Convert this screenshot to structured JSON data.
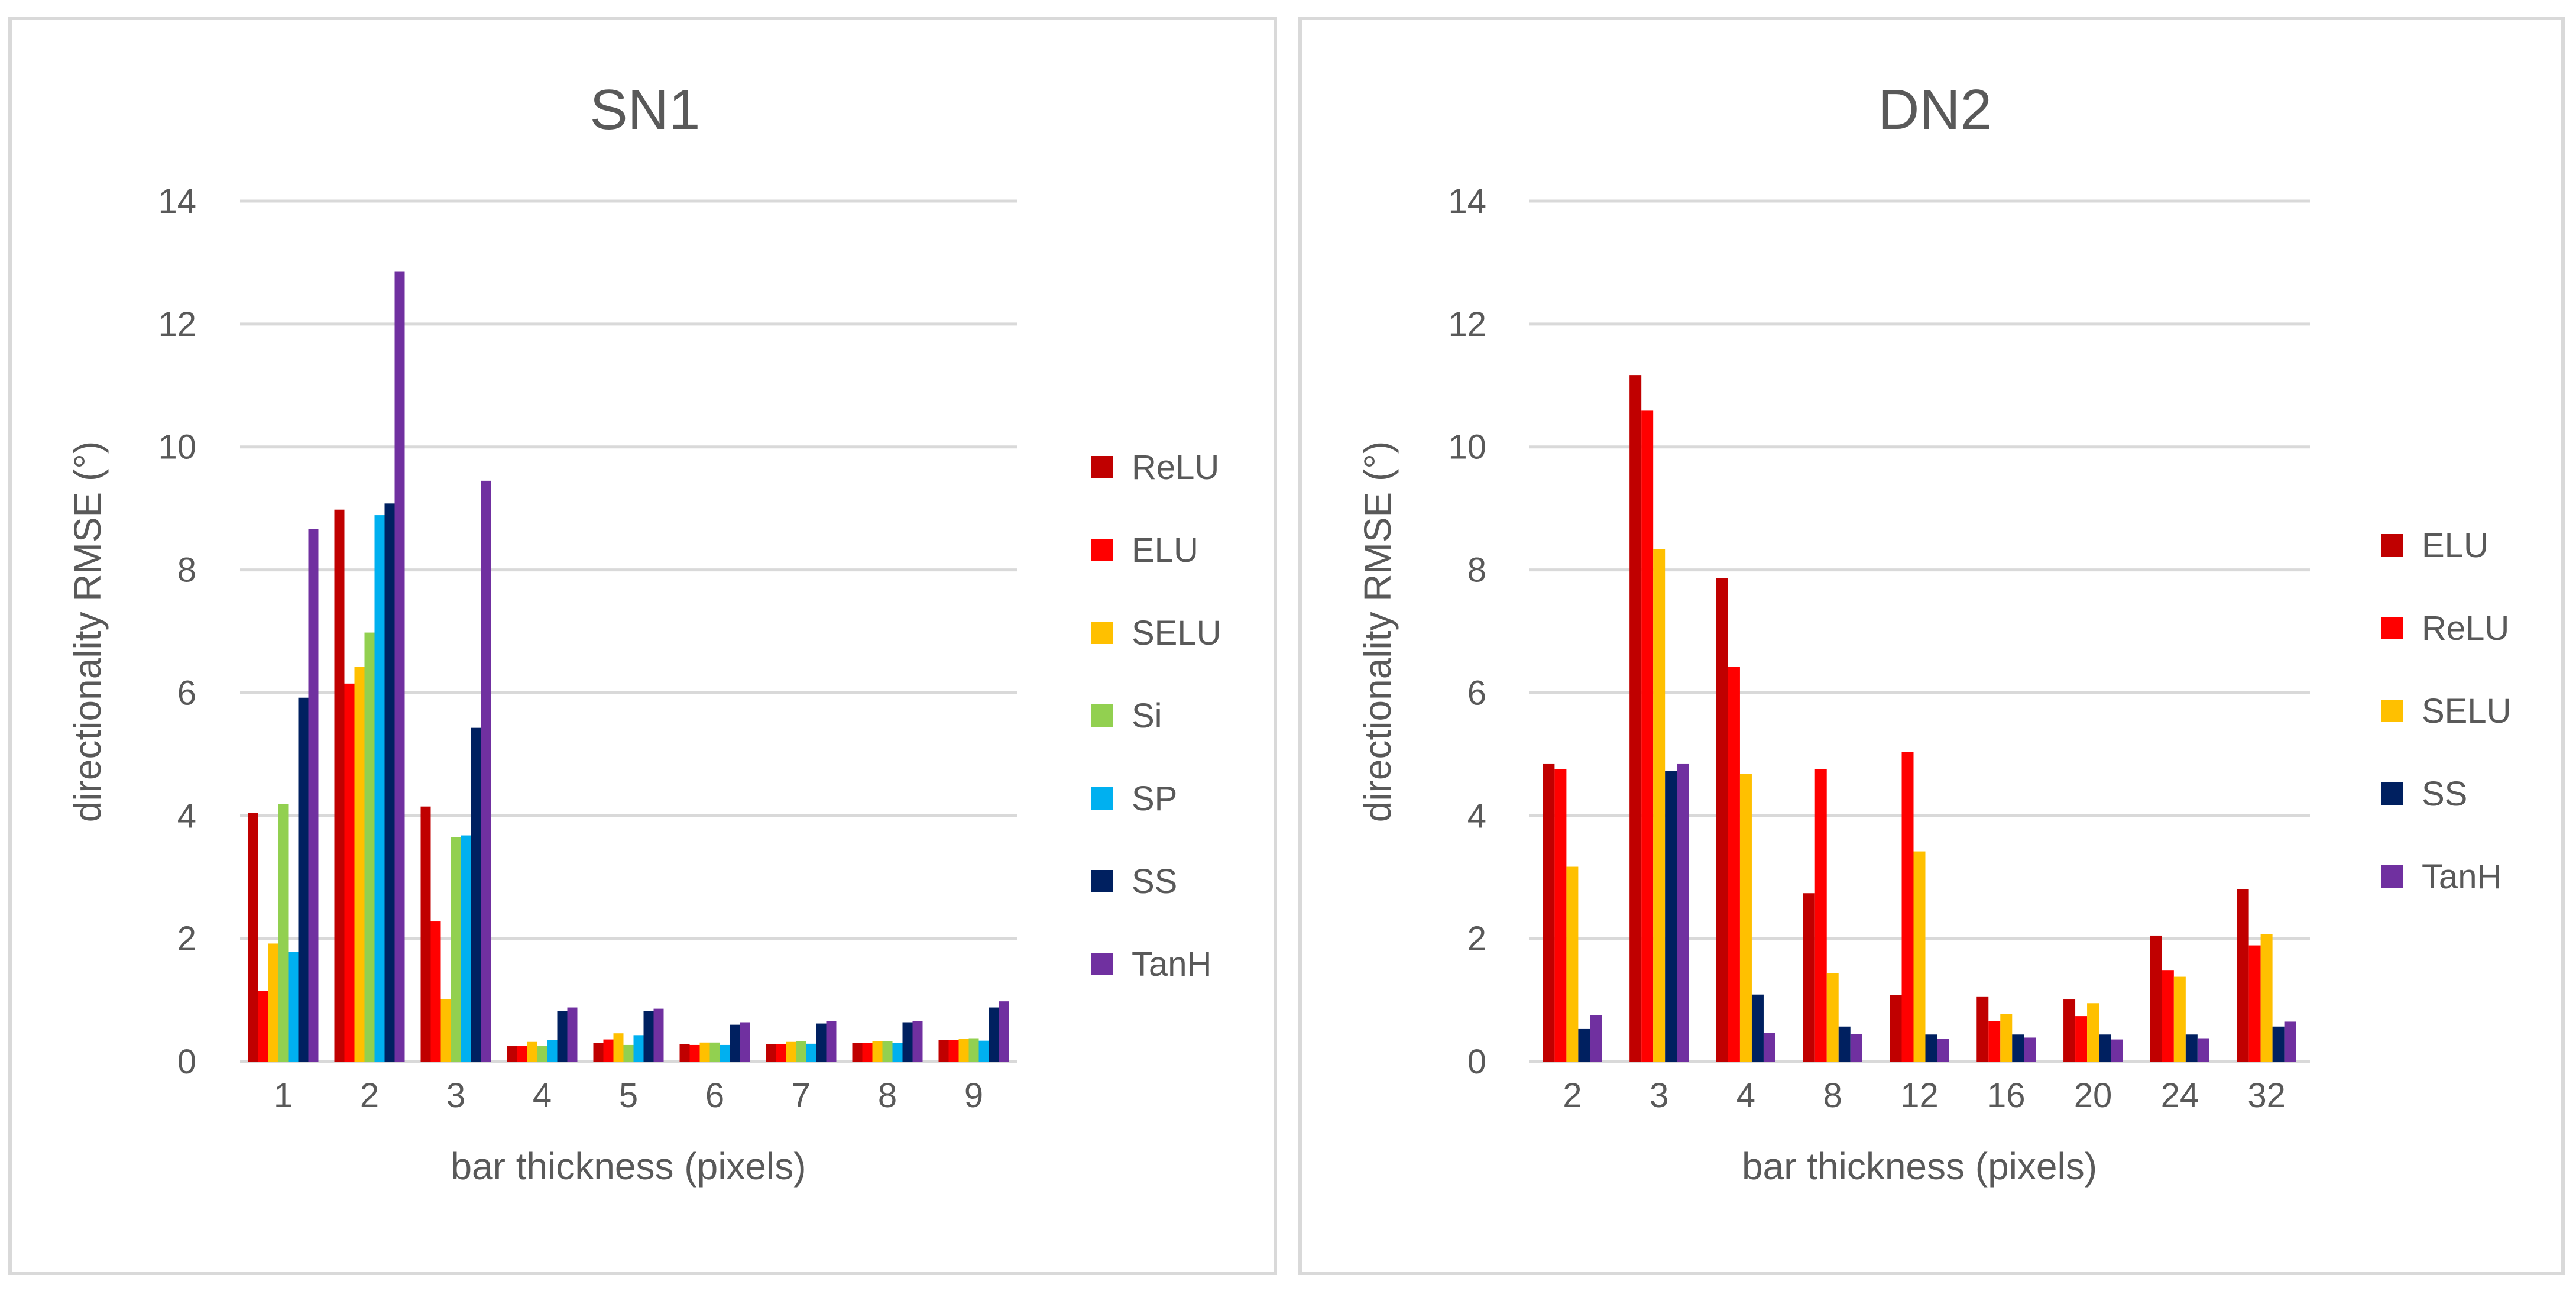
{
  "chart_data": [
    {
      "type": "bar",
      "title": "SN1",
      "xlabel": "bar thickness (pixels)",
      "ylabel": "directionality RMSE (°)",
      "ylim": [
        0,
        14
      ],
      "yticks": [
        "0",
        "2",
        "4",
        "6",
        "8",
        "10",
        "12",
        "14"
      ],
      "grid": true,
      "legend_position": "right",
      "categories": [
        "1",
        "2",
        "3",
        "4",
        "5",
        "6",
        "7",
        "8",
        "9"
      ],
      "series": [
        {
          "name": "ReLU",
          "color": "#c00000",
          "values": [
            4.05,
            8.98,
            4.15,
            0.25,
            0.3,
            0.28,
            0.28,
            0.3,
            0.35
          ]
        },
        {
          "name": "ELU",
          "color": "#ff0000",
          "values": [
            1.15,
            6.15,
            2.28,
            0.25,
            0.36,
            0.27,
            0.28,
            0.3,
            0.35
          ]
        },
        {
          "name": "SELU",
          "color": "#ffc000",
          "values": [
            1.92,
            6.42,
            1.02,
            0.32,
            0.46,
            0.31,
            0.32,
            0.33,
            0.37
          ]
        },
        {
          "name": "Si",
          "color": "#92d050",
          "values": [
            4.19,
            6.98,
            3.65,
            0.25,
            0.27,
            0.31,
            0.33,
            0.33,
            0.38
          ]
        },
        {
          "name": "SP",
          "color": "#00b0f0",
          "values": [
            1.78,
            8.89,
            3.68,
            0.35,
            0.43,
            0.27,
            0.29,
            0.3,
            0.34
          ]
        },
        {
          "name": "SS",
          "color": "#002060",
          "values": [
            5.92,
            9.08,
            5.43,
            0.82,
            0.82,
            0.6,
            0.62,
            0.64,
            0.88
          ]
        },
        {
          "name": "TanH",
          "color": "#7030a0",
          "values": [
            8.66,
            12.85,
            9.45,
            0.88,
            0.86,
            0.64,
            0.66,
            0.66,
            0.98
          ]
        }
      ]
    },
    {
      "type": "bar",
      "title": "DN2",
      "xlabel": "bar thickness (pixels)",
      "ylabel": "directionality RMSE (°)",
      "ylim": [
        0,
        14
      ],
      "yticks": [
        "0",
        "2",
        "4",
        "6",
        "8",
        "10",
        "12",
        "14"
      ],
      "grid": true,
      "legend_position": "right",
      "categories": [
        "2",
        "3",
        "4",
        "8",
        "12",
        "16",
        "20",
        "24",
        "32"
      ],
      "series": [
        {
          "name": "ELU",
          "color": "#c00000",
          "values": [
            4.85,
            11.17,
            7.87,
            2.74,
            1.08,
            1.06,
            1.01,
            2.05,
            2.8
          ]
        },
        {
          "name": "ReLU",
          "color": "#ff0000",
          "values": [
            4.76,
            10.59,
            6.42,
            4.76,
            5.04,
            0.66,
            0.74,
            1.48,
            1.89
          ]
        },
        {
          "name": "SELU",
          "color": "#ffc000",
          "values": [
            3.17,
            8.34,
            4.68,
            1.44,
            3.42,
            0.77,
            0.95,
            1.38,
            2.07
          ]
        },
        {
          "name": "SS",
          "color": "#002060",
          "values": [
            0.53,
            4.73,
            1.09,
            0.57,
            0.44,
            0.44,
            0.44,
            0.44,
            0.57
          ]
        },
        {
          "name": "TanH",
          "color": "#7030a0",
          "values": [
            0.76,
            4.85,
            0.47,
            0.45,
            0.37,
            0.39,
            0.36,
            0.38,
            0.65
          ]
        }
      ]
    }
  ]
}
